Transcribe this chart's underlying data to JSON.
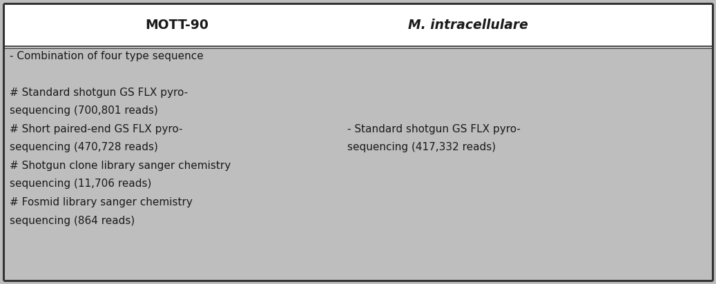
{
  "bg_color": "#bebebe",
  "header_bg": "#ffffff",
  "border_color": "#333333",
  "header1": "MOTT-90",
  "header2": "M. intracellulare",
  "col1_lines": [
    "- Combination of four type sequence",
    "",
    "# Standard shotgun GS FLX pyro-",
    "sequencing (700,801 reads)",
    "# Short paired-end GS FLX pyro-",
    "sequencing (470,728 reads)",
    "# Shotgun clone library sanger chemistry",
    "sequencing (11,706 reads)",
    "# Fosmid library sanger chemistry",
    "sequencing (864 reads)"
  ],
  "col2_lines": [
    "",
    "",
    "",
    "",
    "- Standard shotgun GS FLX pyro-",
    "sequencing (417,332 reads)",
    "",
    "",
    "",
    ""
  ],
  "text_color": "#1a1a1a",
  "header_fontsize": 13.5,
  "body_fontsize": 11.0,
  "fig_width": 10.37,
  "fig_height": 4.12,
  "dpi": 100
}
